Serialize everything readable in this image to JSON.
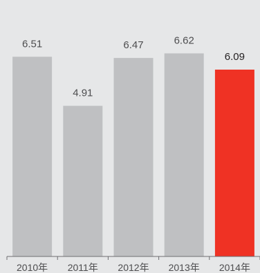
{
  "chart_data": {
    "type": "bar",
    "categories": [
      "2010年",
      "2011年",
      "2012年",
      "2013年",
      "2014年"
    ],
    "values": [
      6.51,
      4.91,
      6.47,
      6.62,
      6.09
    ],
    "value_labels": [
      "6.51",
      "4.91",
      "6.47",
      "6.62",
      "6.09"
    ],
    "highlight_index": 4,
    "ylim": [
      0,
      8
    ],
    "grid": false,
    "colors": {
      "bar": "#bfc0c2",
      "highlight": "#ef3224",
      "axis": "#6d6e71",
      "background": "#e6e7e8"
    }
  }
}
